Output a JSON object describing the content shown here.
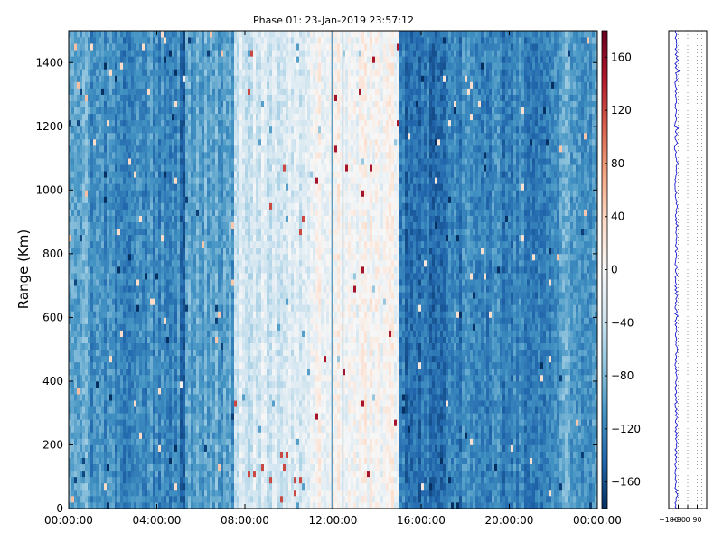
{
  "chart_data": [
    {
      "type": "heatmap",
      "title": "Phase 01: 23-Jan-2019 23:57:12",
      "xlabel": "",
      "ylabel": "Range (Km)",
      "xlim": [
        "00:00:00",
        "24:00:00"
      ],
      "ylim": [
        0,
        1500
      ],
      "x_ticks": [
        "00:00:00",
        "04:00:00",
        "08:00:00",
        "12:00:00",
        "16:00:00",
        "20:00:00",
        "00:00:00"
      ],
      "y_ticks": [
        0,
        200,
        400,
        600,
        800,
        1000,
        1200,
        1400
      ],
      "colorbar": {
        "range": [
          -180,
          180
        ],
        "ticks": [
          -160,
          -120,
          -80,
          -40,
          0,
          40,
          80,
          120,
          160
        ],
        "tick_labels": [
          "−160",
          "−120",
          "−80",
          "−40",
          "0",
          "40",
          "80",
          "120",
          "160"
        ],
        "colormap": "RdBu_r",
        "colors": [
          "#053061",
          "#2166ac",
          "#4393c3",
          "#92c5de",
          "#d1e5f0",
          "#f7f7f7",
          "#fddbc7",
          "#f4a582",
          "#d6604d",
          "#b2182b",
          "#67001f"
        ]
      },
      "phase_bands": [
        {
          "from": "00:00:00",
          "to": "01:00:00",
          "phase": -95
        },
        {
          "from": "01:00:00",
          "to": "05:00:00",
          "phase": -115
        },
        {
          "from": "05:00:00",
          "to": "05:15:00",
          "phase": -140
        },
        {
          "from": "05:15:00",
          "to": "07:30:00",
          "phase": -100
        },
        {
          "from": "07:30:00",
          "to": "11:00:00",
          "phase": -30
        },
        {
          "from": "11:00:00",
          "to": "15:00:00",
          "phase": 0
        },
        {
          "from": "15:00:00",
          "to": "17:30:00",
          "phase": -130
        },
        {
          "from": "17:30:00",
          "to": "22:00:00",
          "phase": -120
        },
        {
          "from": "22:00:00",
          "to": "24:00:00",
          "phase": -100
        }
      ],
      "vertical_lines": [
        "11:57:00",
        "12:27:00"
      ]
    },
    {
      "type": "line",
      "title": "",
      "xlabel": "",
      "ylabel": "",
      "xlim": [
        -180,
        180
      ],
      "ylim": [
        0,
        1500
      ],
      "x_tick_labels": [
        "−180",
        "−90",
        "0",
        "90"
      ],
      "x_ticks": [
        -180,
        -90,
        0,
        90
      ],
      "grid": "vertical dotted",
      "series": [
        {
          "color": "#0000cc",
          "center": -110,
          "spread": 12
        }
      ]
    }
  ]
}
